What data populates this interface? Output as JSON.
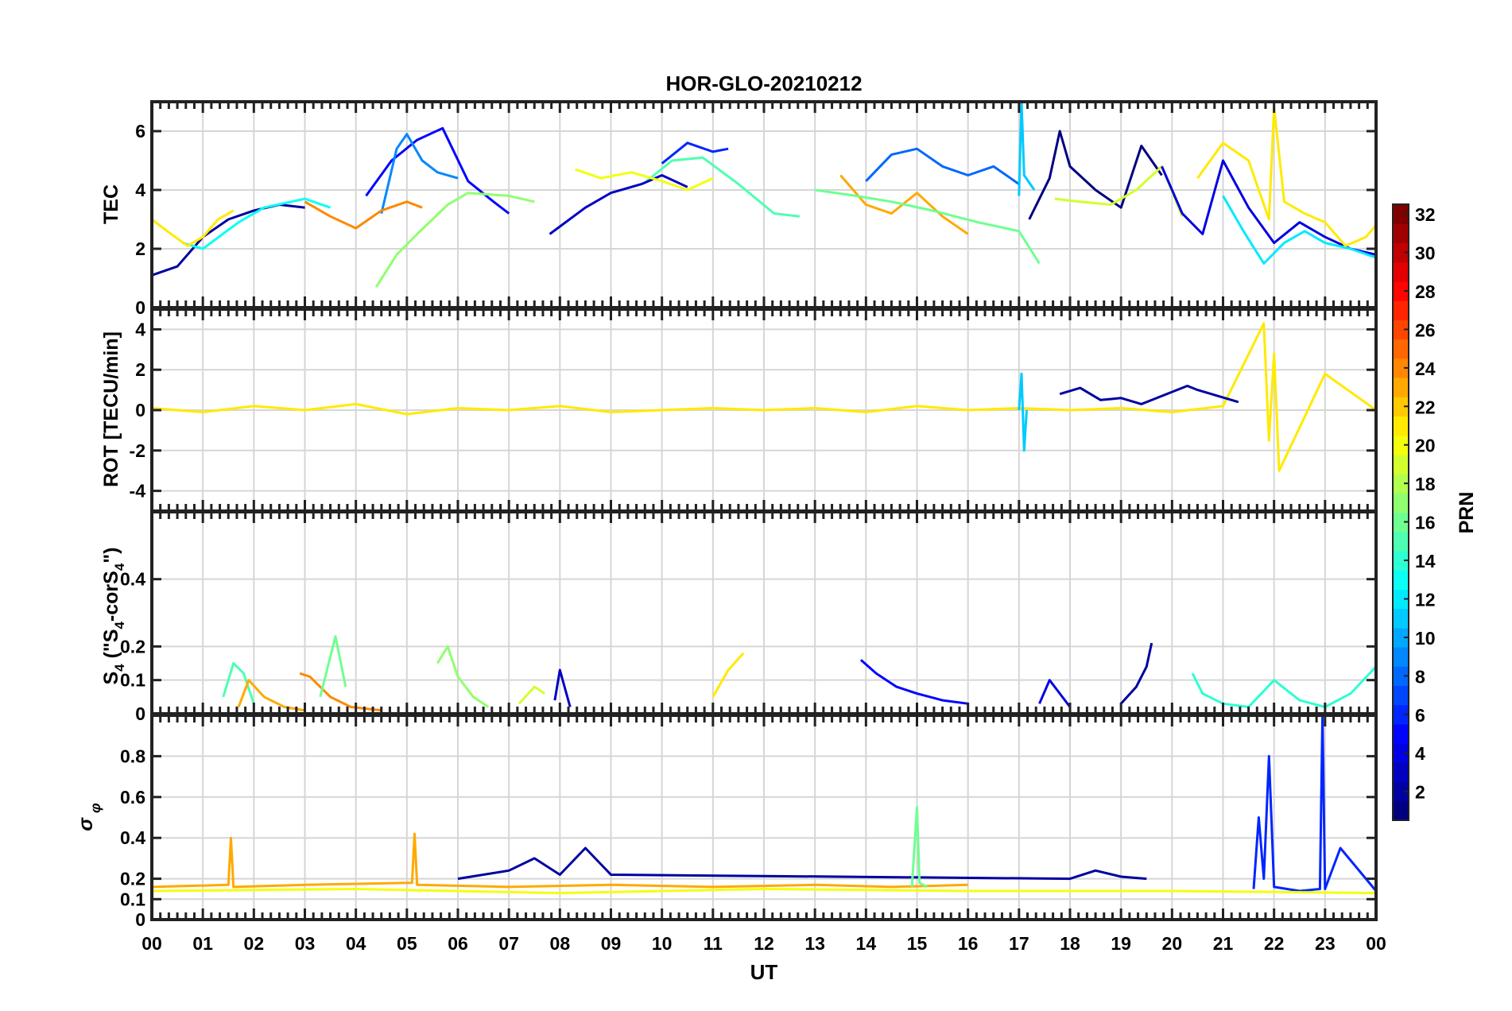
{
  "chart_data": [
    {
      "type": "line",
      "id": "tec",
      "title": "HOR-GLO-20210212",
      "ylabel": "TEC",
      "ylim": [
        0,
        7
      ],
      "yticks": [
        0,
        2,
        4,
        6
      ],
      "xlim": [
        0,
        24
      ],
      "grid": true,
      "series": [
        {
          "prn": 2,
          "x": [
            0.0,
            0.5,
            1.0,
            1.5,
            2.0,
            2.5,
            3.0
          ],
          "values": [
            1.1,
            1.4,
            2.4,
            3.0,
            3.3,
            3.5,
            3.4
          ]
        },
        {
          "prn": 5,
          "x": [
            4.2,
            4.7,
            5.2,
            5.7,
            6.2,
            6.7,
            7.0
          ],
          "values": [
            3.8,
            5.0,
            5.7,
            6.1,
            4.3,
            3.6,
            3.2
          ]
        },
        {
          "prn": 9,
          "x": [
            4.5,
            4.8,
            5.0,
            5.3,
            5.6,
            6.0
          ],
          "values": [
            3.2,
            5.4,
            5.9,
            5.0,
            4.6,
            4.4
          ]
        },
        {
          "prn": 6,
          "x": [
            10.0,
            10.5,
            11.0,
            11.3
          ],
          "values": [
            4.9,
            5.6,
            5.3,
            5.4
          ]
        },
        {
          "prn": 17,
          "x": [
            4.4,
            4.8,
            5.2,
            5.8,
            6.2,
            7.0,
            7.5
          ],
          "values": [
            0.7,
            1.8,
            2.5,
            3.5,
            3.9,
            3.8,
            3.6
          ]
        },
        {
          "prn": 24,
          "x": [
            3.0,
            3.5,
            4.0,
            4.5,
            5.0,
            5.3
          ],
          "values": [
            3.6,
            3.1,
            2.7,
            3.3,
            3.6,
            3.4
          ]
        },
        {
          "prn": 13,
          "x": [
            0.6,
            1.0,
            1.7,
            2.2,
            3.0,
            3.5
          ],
          "values": [
            2.2,
            2.0,
            2.9,
            3.4,
            3.7,
            3.4
          ]
        },
        {
          "prn": 21,
          "x": [
            0.0,
            0.3,
            0.7,
            1.0,
            1.3,
            1.6
          ],
          "values": [
            3.0,
            2.6,
            2.1,
            2.4,
            3.0,
            3.3
          ]
        },
        {
          "prn": 15,
          "x": [
            9.7,
            10.2,
            10.8,
            11.5,
            12.2,
            12.7
          ],
          "values": [
            4.3,
            5.0,
            5.1,
            4.2,
            3.2,
            3.1
          ]
        },
        {
          "prn": 3,
          "x": [
            7.8,
            8.5,
            9.0,
            9.6,
            10.0,
            10.5
          ],
          "values": [
            2.5,
            3.4,
            3.9,
            4.2,
            4.5,
            4.1
          ]
        },
        {
          "prn": 20,
          "x": [
            8.3,
            8.8,
            9.4,
            10.0,
            10.5,
            11.0
          ],
          "values": [
            4.7,
            4.4,
            4.6,
            4.3,
            4.0,
            4.4
          ]
        },
        {
          "prn": 23,
          "x": [
            13.5,
            14.0,
            14.5,
            15.0,
            15.5,
            16.0
          ],
          "values": [
            4.5,
            3.5,
            3.2,
            3.9,
            3.1,
            2.5
          ]
        },
        {
          "prn": 16,
          "x": [
            13.0,
            13.8,
            14.5,
            15.3,
            16.2,
            17.0,
            17.4
          ],
          "values": [
            4.0,
            3.8,
            3.6,
            3.3,
            2.9,
            2.6,
            1.5
          ]
        },
        {
          "prn": 8,
          "x": [
            14.0,
            14.5,
            15.0,
            15.5,
            16.0,
            16.5,
            17.0
          ],
          "values": [
            4.3,
            5.2,
            5.4,
            4.8,
            4.5,
            4.8,
            4.2
          ]
        },
        {
          "prn": 11,
          "x": [
            17.0,
            17.05,
            17.1,
            17.3
          ],
          "values": [
            3.8,
            7.0,
            4.5,
            4.0
          ]
        },
        {
          "prn": 1,
          "x": [
            17.2,
            17.6,
            17.8,
            18.0,
            18.5,
            19.0,
            19.4,
            19.8
          ],
          "values": [
            3.0,
            4.4,
            6.0,
            4.8,
            4.0,
            3.4,
            5.5,
            4.5
          ]
        },
        {
          "prn": 19,
          "x": [
            17.7,
            18.2,
            18.8,
            19.3,
            19.8,
            20.2
          ],
          "values": [
            3.7,
            3.6,
            3.5,
            4.0,
            4.8,
            3.1
          ]
        },
        {
          "prn": 4,
          "x": [
            19.8,
            20.2,
            20.6,
            21.0,
            21.5,
            22.0,
            22.5,
            23.0,
            23.5,
            24.0
          ],
          "values": [
            4.8,
            3.2,
            2.5,
            5.0,
            3.4,
            2.2,
            2.9,
            2.4,
            2.0,
            1.8
          ]
        },
        {
          "prn": 12,
          "x": [
            21.0,
            21.4,
            21.8,
            22.2,
            22.6,
            23.0,
            23.5,
            24.0
          ],
          "values": [
            3.8,
            2.6,
            1.5,
            2.2,
            2.6,
            2.2,
            2.0,
            1.7
          ]
        },
        {
          "prn": 21,
          "x": [
            20.5,
            21.0,
            21.5,
            21.9,
            22.0,
            22.2,
            22.6,
            23.0,
            23.4,
            23.8,
            24.0
          ],
          "values": [
            4.4,
            5.6,
            5.0,
            3.0,
            6.8,
            3.6,
            3.2,
            2.9,
            2.1,
            2.4,
            2.8
          ]
        }
      ]
    },
    {
      "type": "line",
      "id": "rot",
      "ylabel": "ROT [TECU/min]",
      "ylim": [
        -5,
        5
      ],
      "yticks": [
        -4,
        -2,
        0,
        2,
        4
      ],
      "xlim": [
        0,
        24
      ],
      "grid": true,
      "series": [
        {
          "prn": 21,
          "x": [
            0,
            1,
            2,
            3,
            4,
            5,
            6,
            7,
            8,
            9,
            10,
            11,
            12,
            13,
            14,
            15,
            16,
            17,
            18,
            19,
            20,
            21,
            21.8,
            21.9,
            22.0,
            22.1,
            23.0,
            24.0
          ],
          "values": [
            0.1,
            -0.1,
            0.2,
            0,
            0.3,
            -0.2,
            0.1,
            0,
            0.2,
            -0.1,
            0,
            0.1,
            0,
            0.1,
            -0.1,
            0.2,
            0,
            0.1,
            0,
            0.1,
            -0.1,
            0.2,
            4.3,
            -1.5,
            2.8,
            -3.0,
            1.8,
            0
          ]
        },
        {
          "prn": 2,
          "x": [
            17.8,
            18.2,
            18.6,
            19.0,
            19.4,
            20.3,
            20.5,
            21.3
          ],
          "values": [
            0.8,
            1.1,
            0.5,
            0.6,
            0.3,
            1.2,
            1.0,
            0.4
          ]
        },
        {
          "prn": 11,
          "x": [
            17.0,
            17.05,
            17.1,
            17.15
          ],
          "values": [
            0,
            1.8,
            -2.0,
            0
          ]
        }
      ]
    },
    {
      "type": "line",
      "id": "s4",
      "ylabel": "S4 (\"S4-corS4\")",
      "ylim": [
        0,
        0.6
      ],
      "yticks": [
        0,
        0.1,
        0.2,
        0.4
      ],
      "xlim": [
        0,
        24
      ],
      "grid": true,
      "series": [
        {
          "prn": 15,
          "x": [
            1.4,
            1.6,
            1.8,
            2.0
          ],
          "values": [
            0.05,
            0.15,
            0.12,
            0.03
          ]
        },
        {
          "prn": 23,
          "x": [
            1.7,
            1.9,
            2.2,
            2.6,
            3.0
          ],
          "values": [
            0.02,
            0.1,
            0.05,
            0.02,
            0.01
          ]
        },
        {
          "prn": 24,
          "x": [
            2.9,
            3.1,
            3.5,
            3.9,
            4.5
          ],
          "values": [
            0.12,
            0.11,
            0.05,
            0.02,
            0.01
          ]
        },
        {
          "prn": 16,
          "x": [
            3.3,
            3.5,
            3.6,
            3.8
          ],
          "values": [
            0.05,
            0.17,
            0.23,
            0.08
          ]
        },
        {
          "prn": 17,
          "x": [
            5.6,
            5.8,
            6.0,
            6.3,
            6.6
          ],
          "values": [
            0.15,
            0.2,
            0.11,
            0.05,
            0.02
          ]
        },
        {
          "prn": 19,
          "x": [
            7.2,
            7.5,
            7.7
          ],
          "values": [
            0.03,
            0.08,
            0.06
          ]
        },
        {
          "prn": 3,
          "x": [
            7.9,
            8.0,
            8.2
          ],
          "values": [
            0.04,
            0.13,
            0.02
          ]
        },
        {
          "prn": 21,
          "x": [
            11.0,
            11.3,
            11.6
          ],
          "values": [
            0.05,
            0.13,
            0.18
          ]
        },
        {
          "prn": 5,
          "x": [
            13.9,
            14.2,
            14.6,
            15.0,
            15.5,
            16.0
          ],
          "values": [
            0.16,
            0.12,
            0.08,
            0.06,
            0.04,
            0.03
          ]
        },
        {
          "prn": 4,
          "x": [
            17.4,
            17.6,
            17.8,
            18.0
          ],
          "values": [
            0.03,
            0.1,
            0.06,
            0.02
          ]
        },
        {
          "prn": 2,
          "x": [
            19.0,
            19.3,
            19.5,
            19.6
          ],
          "values": [
            0.03,
            0.08,
            0.14,
            0.21
          ]
        },
        {
          "prn": 14,
          "x": [
            20.4,
            20.6,
            21.0,
            21.5,
            22.0,
            22.5,
            23.0,
            23.5,
            24.0
          ],
          "values": [
            0.12,
            0.06,
            0.03,
            0.02,
            0.1,
            0.04,
            0.02,
            0.06,
            0.14
          ]
        }
      ]
    },
    {
      "type": "line",
      "id": "sigma_phi",
      "ylabel": "σφ",
      "ylim": [
        0,
        1
      ],
      "yticks": [
        0,
        0.1,
        0.2,
        0.4,
        0.6,
        0.8
      ],
      "xlim": [
        0,
        24
      ],
      "grid": true,
      "series": [
        {
          "prn": 23,
          "x": [
            0,
            1.5,
            1.55,
            1.6,
            3,
            5.1,
            5.15,
            5.2,
            7,
            9,
            11,
            13,
            14.5,
            16
          ],
          "values": [
            0.16,
            0.17,
            0.4,
            0.16,
            0.17,
            0.18,
            0.42,
            0.17,
            0.16,
            0.17,
            0.16,
            0.17,
            0.16,
            0.17
          ]
        },
        {
          "prn": 2,
          "x": [
            6.0,
            7.0,
            7.5,
            8.0,
            8.5,
            9.0,
            18.0,
            18.5,
            19.0,
            19.5
          ],
          "values": [
            0.2,
            0.24,
            0.3,
            0.22,
            0.35,
            0.22,
            0.2,
            0.24,
            0.21,
            0.2
          ]
        },
        {
          "prn": 6,
          "x": [
            21.6,
            21.7,
            21.8,
            21.9,
            22.0,
            22.5,
            22.9,
            22.95,
            23.0,
            23.3,
            24.0
          ],
          "values": [
            0.15,
            0.5,
            0.2,
            0.8,
            0.16,
            0.14,
            0.15,
            1.0,
            0.15,
            0.35,
            0.14
          ]
        },
        {
          "prn": 16,
          "x": [
            14.9,
            15.0,
            15.05,
            15.2
          ],
          "values": [
            0.16,
            0.55,
            0.18,
            0.16
          ]
        },
        {
          "prn": 20,
          "x": [
            0,
            4,
            8,
            12,
            16,
            20,
            24
          ],
          "values": [
            0.14,
            0.15,
            0.13,
            0.15,
            0.14,
            0.14,
            0.13
          ]
        }
      ]
    }
  ],
  "x_axis": {
    "label": "UT",
    "tick_labels": [
      "00",
      "01",
      "02",
      "03",
      "04",
      "05",
      "06",
      "07",
      "08",
      "09",
      "10",
      "11",
      "12",
      "13",
      "14",
      "15",
      "16",
      "17",
      "18",
      "19",
      "20",
      "21",
      "22",
      "23",
      "00"
    ]
  },
  "colorbar": {
    "label": "PRN",
    "range": [
      1,
      32
    ],
    "tick_labels": [
      "2",
      "4",
      "6",
      "8",
      "10",
      "12",
      "14",
      "16",
      "18",
      "20",
      "22",
      "24",
      "26",
      "28",
      "30",
      "32"
    ],
    "colormap": "jet"
  },
  "s4_label": {
    "main": "S",
    "sub": "4",
    "open": " (\"S",
    "sub2": "4",
    "mid": "-corS",
    "sub3": "4",
    "close": "\")"
  },
  "sigma_label": {
    "main": "σ",
    "sub": "φ"
  }
}
